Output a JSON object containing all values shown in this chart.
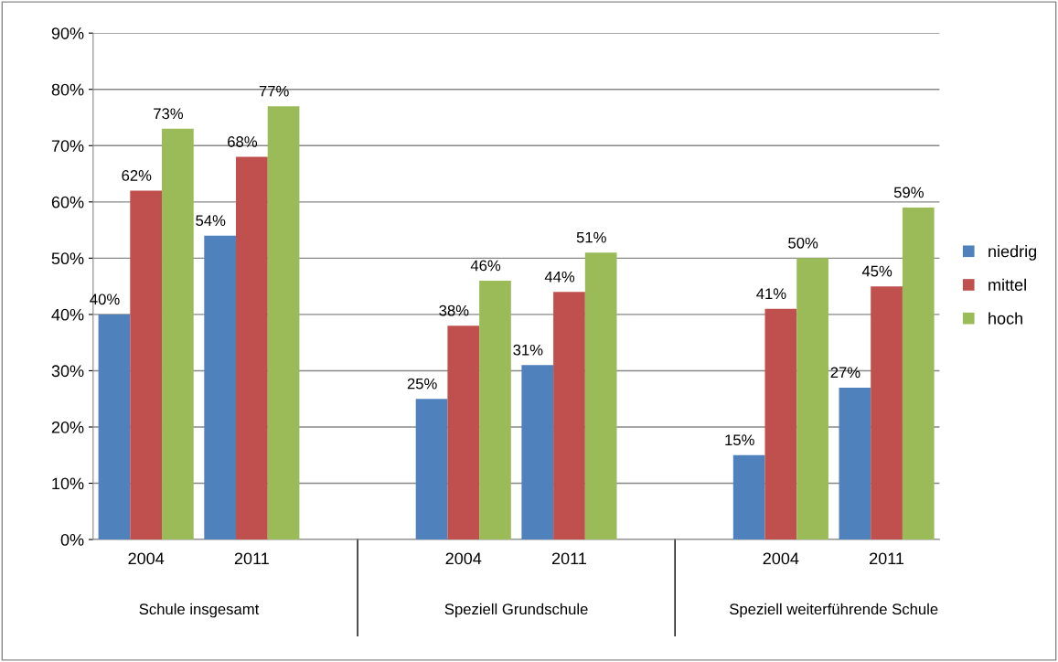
{
  "chart_data": {
    "type": "bar",
    "categories": [
      "2004",
      "2011",
      null,
      "2004",
      "2011",
      null,
      "2004",
      "2011"
    ],
    "series": [
      {
        "name": "niedrig",
        "color": "#4f81bd",
        "values": [
          40,
          54,
          null,
          25,
          31,
          null,
          15,
          27
        ],
        "value_labels": [
          "40%",
          "54%",
          null,
          "25%",
          "31%",
          null,
          "15%",
          "27%"
        ]
      },
      {
        "name": "mittel",
        "color": "#c0504d",
        "values": [
          62,
          68,
          null,
          38,
          44,
          null,
          41,
          45
        ],
        "value_labels": [
          "62%",
          "68%",
          null,
          "38%",
          "44%",
          null,
          "41%",
          "45%"
        ]
      },
      {
        "name": "hoch",
        "color": "#9bbb59",
        "values": [
          73,
          77,
          null,
          46,
          51,
          null,
          50,
          59
        ],
        "value_labels": [
          "73%",
          "77%",
          null,
          "46%",
          "51%",
          null,
          "50%",
          "59%"
        ]
      }
    ],
    "ylim": [
      0,
      90
    ],
    "yticks": [
      {
        "value": 0,
        "label": "0%"
      },
      {
        "value": 10,
        "label": "10%"
      },
      {
        "value": 20,
        "label": "20%"
      },
      {
        "value": 30,
        "label": "30%"
      },
      {
        "value": 40,
        "label": "40%"
      },
      {
        "value": 50,
        "label": "50%"
      },
      {
        "value": 60,
        "label": "60%"
      },
      {
        "value": 70,
        "label": "70%"
      },
      {
        "value": 80,
        "label": "80%"
      },
      {
        "value": 90,
        "label": "90%"
      }
    ],
    "annotations": [
      "Schule insgesamt",
      "Speziell Grundschule",
      "Speziell weiterführende Schule"
    ],
    "grid": "y",
    "legend": "right"
  }
}
